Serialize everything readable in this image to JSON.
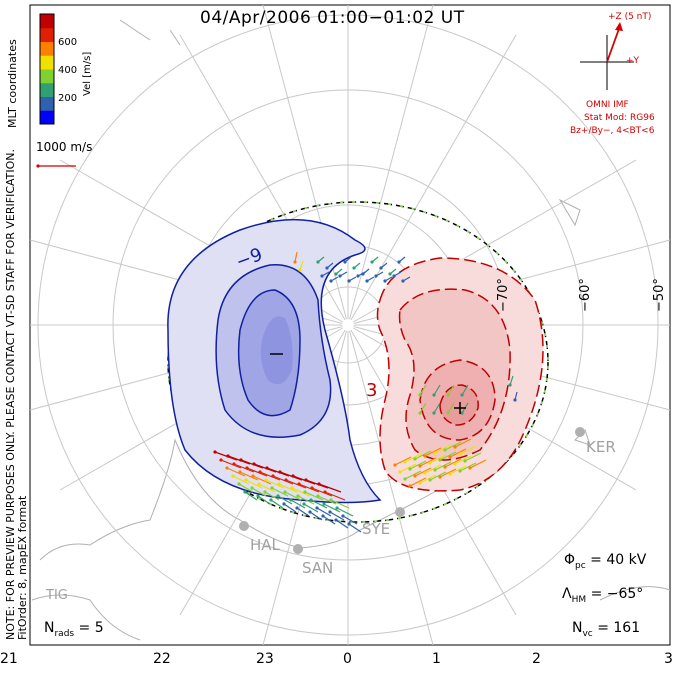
{
  "title": "04/Apr/2006 01:00−01:02 UT",
  "legend": {
    "label": "Vel [m/s]",
    "ticks": [
      "600",
      "400",
      "200"
    ],
    "colors": [
      "#0000ff",
      "#3060b0",
      "#30a070",
      "#80d030",
      "#f0e000",
      "#ff8000",
      "#e02000",
      "#c00000"
    ]
  },
  "coords_label": "MLT coordinates",
  "note_text": "NOTE: FOR PREVIEW PURPOSES ONLY. PLEASE CONTACT VT-SD STAFF FOR VERIFICATION.",
  "fit_text": "FitOrder: 8, mapEX format",
  "vector_scale_label": "1000 m/s",
  "imf": {
    "z_label": "+Z (5 nT)",
    "y_label": "+Y",
    "title": "OMNI IMF",
    "model": "Stat Mod: RG96",
    "condition": "Bz+/By−, 4<BT<6"
  },
  "stats": {
    "phi_pc": "Φpc = 40 kV",
    "lambda_hm": "ΛHM = −65°",
    "n_vc": "Nvc = 161",
    "n_rads": "Nrads = 5"
  },
  "stats_parts": {
    "phi": "Φ",
    "phi_sub": "pc",
    "phi_val": " = 40 kV",
    "lam": "Λ",
    "lam_sub": "HM",
    "lam_val": " = −65°",
    "nvc": "N",
    "nvc_sub": "vc",
    "nvc_val": " = 161",
    "nrads": "N",
    "nrads_sub": "rads",
    "nrads_val": " = 5"
  },
  "mlt_ticks": [
    "21",
    "22",
    "23",
    "0",
    "1",
    "2",
    "3"
  ],
  "lat_labels": [
    "−70°",
    "−60°",
    "−50°"
  ],
  "stations": [
    "KER",
    "HAL",
    "SAN",
    "SYE",
    "TIG"
  ],
  "contour_labels": [
    "−9",
    "3"
  ],
  "potential_markers": [
    "−",
    "+"
  ]
}
